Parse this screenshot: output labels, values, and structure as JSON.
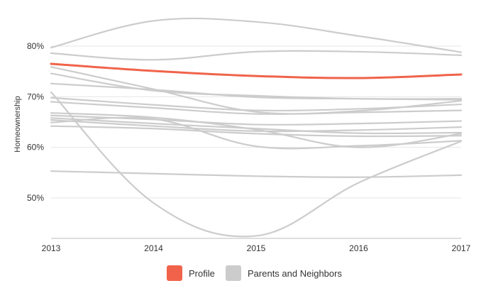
{
  "chart_data": {
    "type": "line",
    "title": "",
    "xlabel": "",
    "ylabel": "Homeownership",
    "x": [
      2013,
      2014,
      2015,
      2016,
      2017
    ],
    "x_ticks": [
      "2013",
      "2014",
      "2015",
      "2016",
      "2017"
    ],
    "y_ticks": [
      {
        "value": 50,
        "label": "50%"
      },
      {
        "value": 60,
        "label": "60%"
      },
      {
        "value": 70,
        "label": "70%"
      },
      {
        "value": 80,
        "label": "80%"
      }
    ],
    "xlim": [
      2013,
      2017
    ],
    "ylim": [
      42,
      88
    ],
    "grid": true,
    "legend_position": "bottom",
    "legend": [
      {
        "label": "Profile",
        "color": "#f0634a"
      },
      {
        "label": "Parents and Neighbors",
        "color": "#cccccc"
      }
    ],
    "series": [
      {
        "group": "profile",
        "color": "#f0634a",
        "values": [
          76.5,
          75.1,
          74.1,
          73.7,
          74.4
        ]
      },
      {
        "group": "neighbors",
        "color": "#cccccc",
        "values": [
          79.7,
          85.0,
          84.8,
          82.0,
          78.8
        ]
      },
      {
        "group": "neighbors",
        "color": "#cccccc",
        "values": [
          78.6,
          77.3,
          78.9,
          78.9,
          78.2
        ]
      },
      {
        "group": "neighbors",
        "color": "#cccccc",
        "values": [
          75.9,
          71.5,
          67.0,
          67.2,
          69.2
        ]
      },
      {
        "group": "neighbors",
        "color": "#cccccc",
        "values": [
          74.6,
          71.2,
          70.2,
          69.6,
          69.6
        ]
      },
      {
        "group": "neighbors",
        "color": "#cccccc",
        "values": [
          72.6,
          71.4,
          69.9,
          69.6,
          69.4
        ]
      },
      {
        "group": "neighbors",
        "color": "#cccccc",
        "values": [
          70.9,
          49.0,
          42.5,
          53.0,
          61.2
        ]
      },
      {
        "group": "neighbors",
        "color": "#cccccc",
        "values": [
          69.8,
          68.4,
          67.3,
          67.6,
          68.5
        ]
      },
      {
        "group": "neighbors",
        "color": "#cccccc",
        "values": [
          69.0,
          67.8,
          66.6,
          66.9,
          67.3
        ]
      },
      {
        "group": "neighbors",
        "color": "#cccccc",
        "values": [
          66.8,
          65.9,
          63.5,
          60.0,
          62.7
        ]
      },
      {
        "group": "neighbors",
        "color": "#cccccc",
        "values": [
          66.3,
          65.5,
          64.5,
          64.7,
          65.2
        ]
      },
      {
        "group": "neighbors",
        "color": "#cccccc",
        "values": [
          65.8,
          64.7,
          63.7,
          62.8,
          62.9
        ]
      },
      {
        "group": "neighbors",
        "color": "#cccccc",
        "values": [
          65.4,
          64.2,
          63.2,
          63.4,
          64.0
        ]
      },
      {
        "group": "neighbors",
        "color": "#cccccc",
        "values": [
          64.9,
          65.6,
          60.2,
          60.3,
          61.3
        ]
      },
      {
        "group": "neighbors",
        "color": "#cccccc",
        "values": [
          64.2,
          63.7,
          62.7,
          62.2,
          62.3
        ]
      },
      {
        "group": "neighbors",
        "color": "#cccccc",
        "values": [
          55.3,
          54.8,
          54.3,
          54.1,
          54.5
        ]
      }
    ]
  }
}
